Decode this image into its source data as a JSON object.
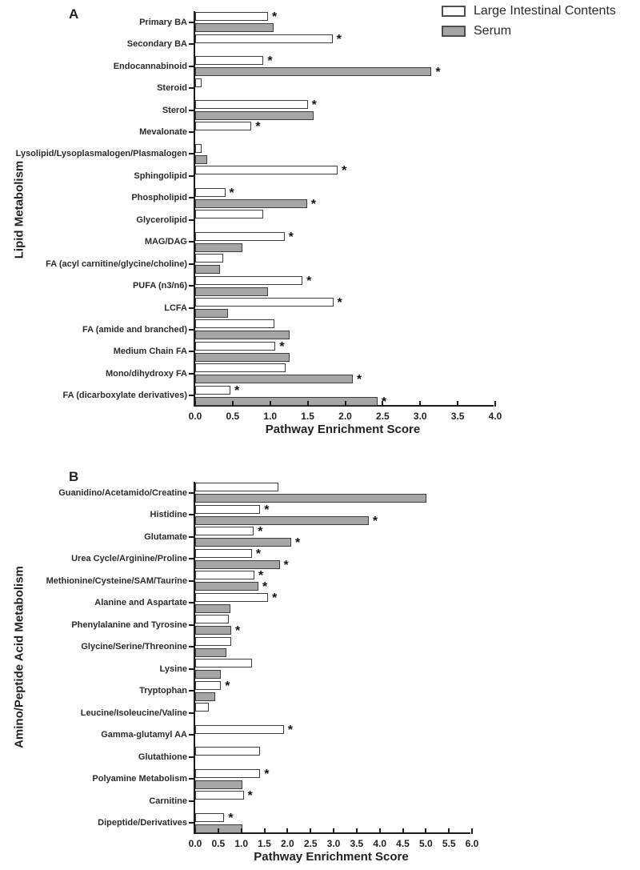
{
  "page": {
    "background": "#ffffff"
  },
  "legend": {
    "items": [
      {
        "label": "Large Intestinal Contents",
        "swatch": "#ffffff"
      },
      {
        "label": "Serum",
        "swatch": "#a6a6a6"
      }
    ]
  },
  "colors": {
    "bar_border": "#3c3c3c",
    "white_bar": "#ffffff",
    "gray_bar": "#a6a6a6",
    "axis": "#1c1c1c",
    "text": "#1f1f1f"
  },
  "significance_marker": "*",
  "chart_data": [
    {
      "panel_label": "A",
      "type": "bar",
      "orientation": "horizontal",
      "xlabel": "Pathway Enrichment Score",
      "ylabel": "Lipid Metabolism",
      "xlim": [
        0,
        4.0
      ],
      "xtick_step": 0.5,
      "xticks": [
        "0.0",
        "0.5",
        "1.0",
        "1.5",
        "2.0",
        "2.5",
        "3.0",
        "3.5",
        "4.0"
      ],
      "grid": false,
      "legend_position": "top-right",
      "categories": [
        "Primary BA",
        "Secondary BA",
        "Endocannabinoid",
        "Steroid",
        "Sterol",
        "Mevalonate",
        "Lysolipid/Lysoplasmalogen/Plasmalogen",
        "Sphingolipid",
        "Phospholipid",
        "Glycerolipid",
        "MAG/DAG",
        "FA (acyl carnitine/glycine/choline)",
        "PUFA (n3/n6)",
        "LCFA",
        "FA (amide and branched)",
        "Medium Chain FA",
        "Mono/dihydroxy FA",
        "FA (dicarboxylate derivatives)"
      ],
      "series": [
        {
          "name": "Large Intestinal Contents",
          "values": [
            0.97,
            1.83,
            0.91,
            0.09,
            1.5,
            0.75,
            0.09,
            1.9,
            0.4,
            0.91,
            1.19,
            0.37,
            1.43,
            1.84,
            1.06,
            1.07,
            1.2,
            0.47
          ],
          "significant": [
            true,
            true,
            true,
            false,
            true,
            true,
            false,
            true,
            true,
            false,
            true,
            false,
            true,
            true,
            false,
            true,
            false,
            true
          ]
        },
        {
          "name": "Serum",
          "values": [
            1.05,
            null,
            3.15,
            null,
            1.58,
            null,
            0.16,
            null,
            1.49,
            null,
            0.63,
            0.33,
            0.97,
            0.44,
            1.26,
            1.26,
            2.1,
            2.43
          ],
          "significant": [
            false,
            false,
            true,
            false,
            false,
            false,
            false,
            false,
            true,
            false,
            false,
            false,
            false,
            false,
            false,
            false,
            true,
            true
          ]
        }
      ]
    },
    {
      "panel_label": "B",
      "type": "bar",
      "orientation": "horizontal",
      "xlabel": "Pathway Enrichment Score",
      "ylabel": "Amino/Peptide Acid Metabolism",
      "xlim": [
        0,
        6.0
      ],
      "xtick_step": 0.5,
      "xticks": [
        "0.0",
        "0.5",
        "1.0",
        "1.5",
        "2.0",
        "2.5",
        "3.0",
        "3.5",
        "4.0",
        "4.5",
        "5.0",
        "5.5",
        "6.0"
      ],
      "grid": false,
      "legend_position": "none",
      "categories": [
        "Guanidino/Acetamido/Creatine",
        "Histidine",
        "Glutamate",
        "Urea Cycle/Arginine/Proline",
        "Methionine/Cysteine/SAM/Taurine",
        "Alanine and Aspartate",
        "Phenylalanine and Tyrosine",
        "Glycine/Serine/Threonine",
        "Lysine",
        "Tryptophan",
        "Leucine/Isoleucine/Valine",
        "Gamma-glutamyl AA",
        "Glutathione",
        "Polyamine Metabolism",
        "Carnitine",
        "Dipeptide/Derivatives"
      ],
      "series": [
        {
          "name": "Large Intestinal Contents",
          "values": [
            1.81,
            1.41,
            1.27,
            1.23,
            1.28,
            1.58,
            0.73,
            0.78,
            1.23,
            0.56,
            0.3,
            1.92,
            1.41,
            1.41,
            1.05,
            0.63
          ],
          "significant": [
            false,
            true,
            true,
            true,
            true,
            true,
            false,
            false,
            false,
            true,
            false,
            true,
            false,
            true,
            true,
            true
          ]
        },
        {
          "name": "Serum",
          "values": [
            5.01,
            3.76,
            2.08,
            1.83,
            1.37,
            0.77,
            0.78,
            0.68,
            0.55,
            0.44,
            null,
            null,
            null,
            1.03,
            null,
            1.03
          ],
          "significant": [
            false,
            true,
            true,
            true,
            true,
            false,
            true,
            false,
            false,
            false,
            false,
            false,
            false,
            false,
            false,
            false
          ]
        }
      ]
    }
  ]
}
